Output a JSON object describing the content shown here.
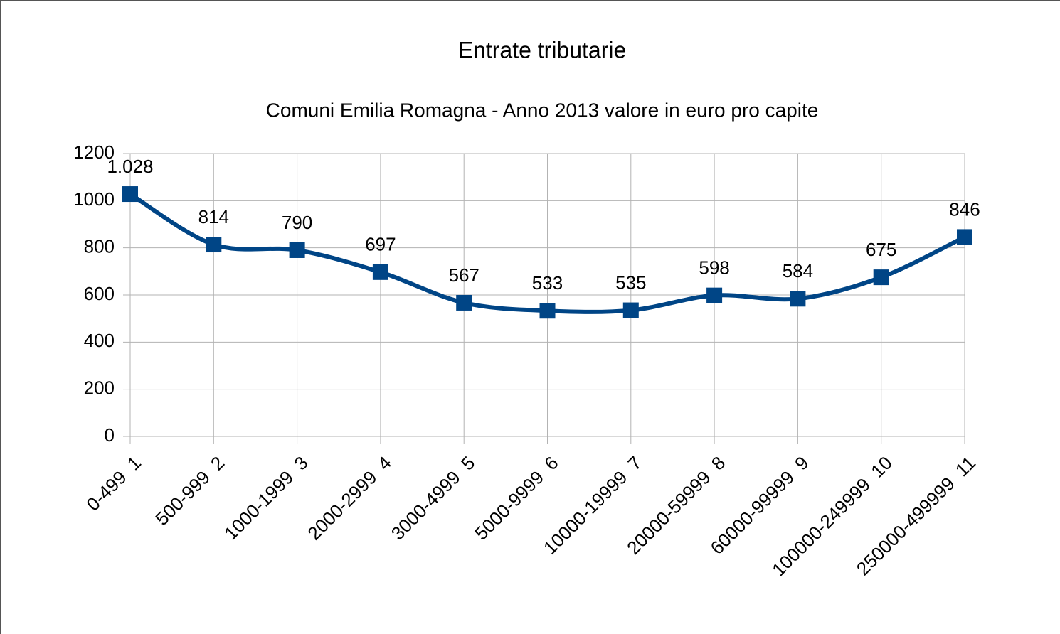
{
  "chart_data": {
    "type": "line",
    "title": "Entrate tributarie",
    "subtitle": "Comuni Emilia Romagna - Anno 2013 valore in euro pro capite",
    "categories": [
      "0-499  1",
      "500-999  2",
      "1000-1999  3",
      "2000-2999  4",
      "3000-4999  5",
      "5000-9999  6",
      "10000-19999  7",
      "20000-59999  8",
      "60000-99999  9",
      "100000-249999  10",
      "250000-499999  11"
    ],
    "values": [
      1028,
      814,
      790,
      697,
      567,
      533,
      535,
      598,
      584,
      675,
      846
    ],
    "value_labels": [
      "1.028",
      "814",
      "790",
      "697",
      "567",
      "533",
      "535",
      "598",
      "584",
      "675",
      "846"
    ],
    "color": "#004586",
    "ylim": [
      0,
      1200
    ],
    "yticks": [
      0,
      200,
      400,
      600,
      800,
      1000,
      1200
    ],
    "grid": true
  }
}
